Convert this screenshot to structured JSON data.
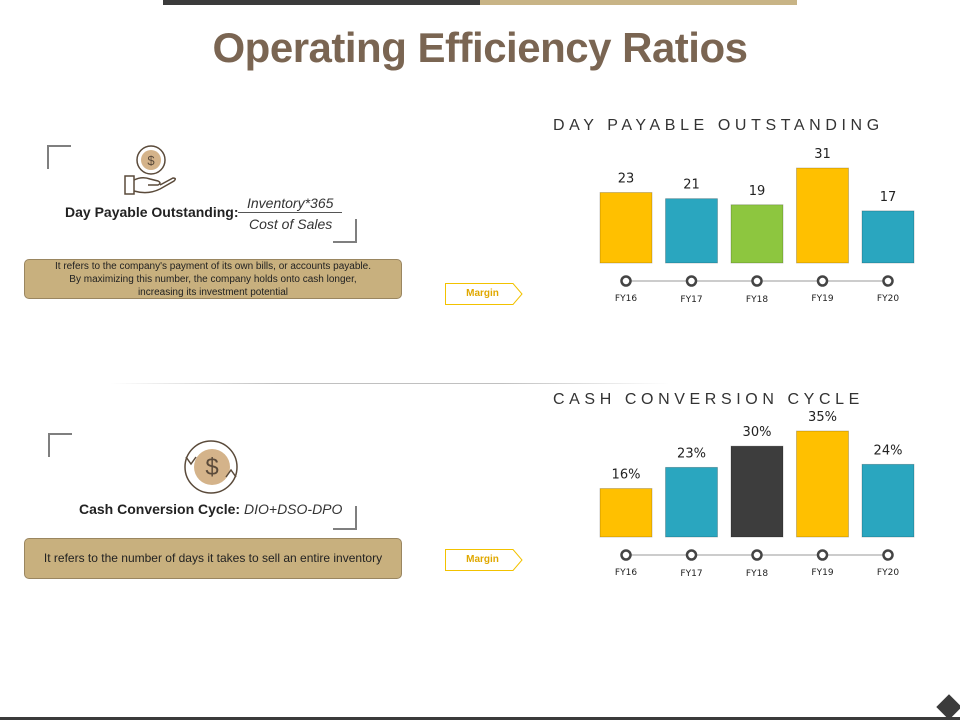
{
  "title": "Operating Efficiency Ratios",
  "sections": [
    {
      "label": "Day Payable Outstanding:",
      "numerator": "Inventory*365",
      "denominator": "Cost of Sales",
      "description_lines": [
        "It refers to the company's payment of its own bills, or accounts payable.",
        "By maximizing this number, the company holds onto cash longer,",
        "increasing its investment potential"
      ],
      "margin_label": "Margin",
      "icon": "hand-dollar-icon"
    },
    {
      "label": "Cash Conversion Cycle:",
      "formula": "DIO+DSO-DPO",
      "description": "It refers to the number of days it takes to sell an entire inventory",
      "margin_label": "Margin",
      "icon": "cycle-dollar-icon"
    }
  ],
  "chart_data": [
    {
      "type": "bar",
      "title": "DAY PAYABLE OUTSTANDING",
      "categories": [
        "FY16",
        "FY17",
        "FY18",
        "FY19",
        "FY20"
      ],
      "values": [
        23,
        21,
        19,
        31,
        17
      ],
      "labels": [
        "23",
        "21",
        "19",
        "31",
        "17"
      ],
      "colors": [
        "#ffc000",
        "#2aa6bf",
        "#8dc63f",
        "#ffc000",
        "#2aa6bf"
      ],
      "ylim": [
        0,
        31
      ]
    },
    {
      "type": "bar",
      "title": "CASH CONVERSION CYCLE",
      "categories": [
        "FY16",
        "FY17",
        "FY18",
        "FY19",
        "FY20"
      ],
      "values": [
        16,
        23,
        30,
        35,
        24
      ],
      "labels": [
        "16%",
        "23%",
        "30%",
        "35%",
        "24%"
      ],
      "colors": [
        "#ffc000",
        "#2aa6bf",
        "#3d3d3d",
        "#ffc000",
        "#2aa6bf"
      ],
      "ylim": [
        0,
        35
      ]
    }
  ]
}
